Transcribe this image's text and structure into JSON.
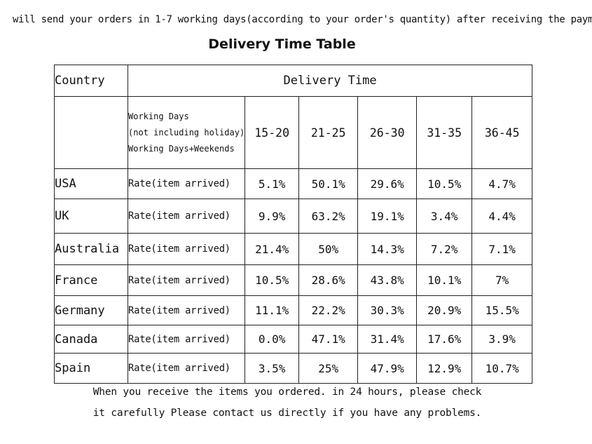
{
  "notice": "will send your orders in 1-7 working days(according to your order's quantity) after receiving the payment",
  "title": "Delivery Time Table",
  "table": {
    "country_header": "Country",
    "delivery_header": "Delivery Time",
    "working_days_lines": [
      "Working Days",
      "(not including holiday)",
      "Working Days+Weekends"
    ],
    "ranges": [
      "15-20",
      "21-25",
      "26-30",
      "31-35",
      "36-45"
    ],
    "rows": [
      {
        "country": "USA",
        "label": "Rate(item arrived)",
        "values": [
          "5.1%",
          "50.1%",
          "29.6%",
          "10.5%",
          "4.7%"
        ]
      },
      {
        "country": "UK",
        "label": "Rate(item arrived)",
        "values": [
          "9.9%",
          "63.2%",
          "19.1%",
          "3.4%",
          "4.4%"
        ]
      },
      {
        "country": "Australia",
        "label": "Rate(item arrived)",
        "values": [
          "21.4%",
          "50%",
          "14.3%",
          "7.2%",
          "7.1%"
        ]
      },
      {
        "country": "France",
        "label": "Rate(item arrived)",
        "values": [
          "10.5%",
          "28.6%",
          "43.8%",
          "10.1%",
          "7%"
        ]
      },
      {
        "country": "Germany",
        "label": "Rate(item arrived)",
        "values": [
          "11.1%",
          "22.2%",
          "30.3%",
          "20.9%",
          "15.5%"
        ]
      },
      {
        "country": "Canada",
        "label": "Rate(item arrived)",
        "values": [
          "0.0%",
          "47.1%",
          "31.4%",
          "17.6%",
          "3.9%"
        ]
      },
      {
        "country": "Spain",
        "label": "Rate(item arrived)",
        "values": [
          "3.5%",
          "25%",
          "47.9%",
          "12.9%",
          "10.7%"
        ]
      }
    ]
  },
  "footer": {
    "line1": "When you receive the items you ordered. in 24 hours, please check",
    "line2": "it carefully Please contact us directly if you have any problems."
  }
}
